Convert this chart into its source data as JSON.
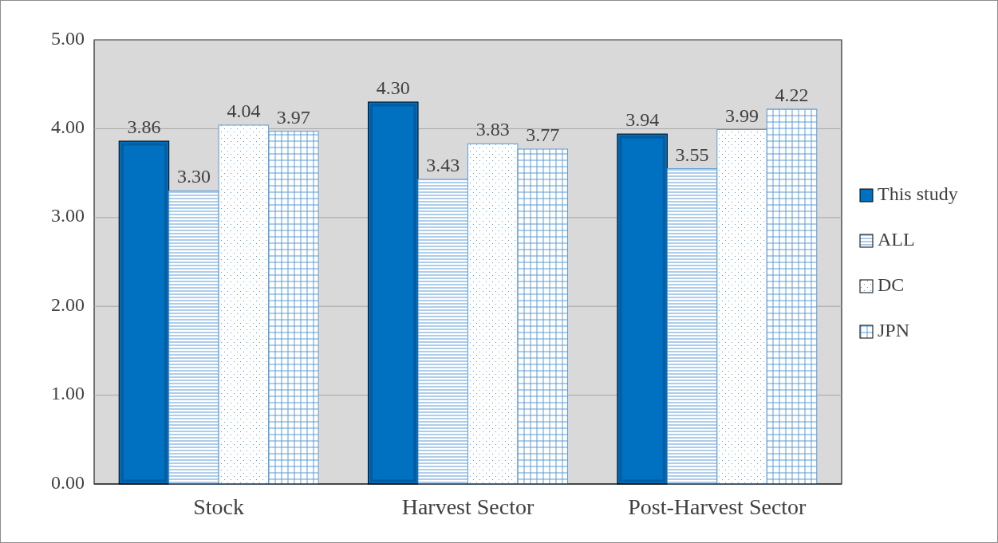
{
  "chart_data": {
    "type": "bar",
    "categories": [
      "Stock",
      "Harvest Sector",
      "Post-Harvest Sector"
    ],
    "series": [
      {
        "name": "This study",
        "color": "#0070c0",
        "values": [
          3.86,
          4.3,
          3.94
        ],
        "value_labels": [
          "3.86",
          "4.30",
          "3.94"
        ]
      },
      {
        "name": "ALL",
        "color": "#5b9bd5",
        "values": [
          3.3,
          3.43,
          3.55
        ],
        "value_labels": [
          "3.30",
          "3.43",
          "3.55"
        ]
      },
      {
        "name": "DC",
        "color": "#5b9bd5",
        "values": [
          4.04,
          3.83,
          3.99
        ],
        "value_labels": [
          "4.04",
          "3.83",
          "3.99"
        ]
      },
      {
        "name": "JPN",
        "color": "#5b9bd5",
        "values": [
          3.97,
          3.77,
          4.22
        ],
        "value_labels": [
          "3.97",
          "3.77",
          "4.22"
        ]
      }
    ],
    "ylim": [
      0,
      5
    ],
    "yticks": [
      {
        "value": 0,
        "label": "0.00"
      },
      {
        "value": 1,
        "label": "1.00"
      },
      {
        "value": 2,
        "label": "2.00"
      },
      {
        "value": 3,
        "label": "3.00"
      },
      {
        "value": 4,
        "label": "4.00"
      },
      {
        "value": 5,
        "label": "5.00"
      }
    ],
    "grid": "y",
    "legend": "right"
  }
}
